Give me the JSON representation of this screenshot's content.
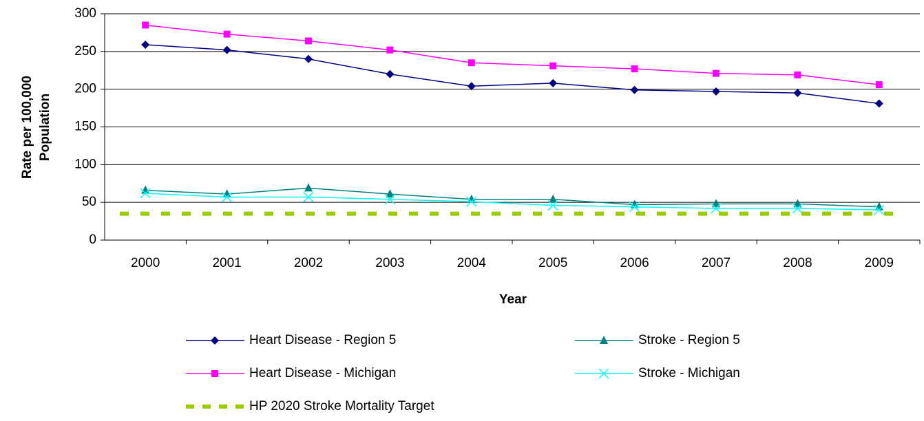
{
  "chart_data": {
    "type": "line",
    "x_label": "Year",
    "y_label": [
      "Rate per 100,000",
      "Population"
    ],
    "categories": [
      "2000",
      "2001",
      "2002",
      "2003",
      "2004",
      "2005",
      "2006",
      "2007",
      "2008",
      "2009"
    ],
    "series": [
      {
        "name": "Heart Disease - Region 5",
        "color": "#000080",
        "marker": "diamond",
        "values": [
          259,
          252,
          240,
          220,
          204,
          208,
          199,
          197,
          195,
          181
        ]
      },
      {
        "name": "Stroke - Region 5",
        "color": "#008080",
        "marker": "triangle",
        "values": [
          66,
          61,
          69,
          61,
          54,
          54,
          47,
          48,
          48,
          44
        ]
      },
      {
        "name": "Heart Disease - Michigan",
        "color": "#ff00ff",
        "marker": "square",
        "values": [
          285,
          273,
          264,
          252,
          235,
          231,
          227,
          221,
          219,
          206
        ]
      },
      {
        "name": "Stroke - Michigan",
        "color": "#00ffff",
        "marker": "x",
        "values": [
          62,
          57,
          57,
          54,
          51,
          46,
          44,
          42,
          42,
          40
        ]
      },
      {
        "name": "HP 2020 Stroke Mortality Target",
        "color": "#99cc00",
        "marker": "none",
        "dashed": true,
        "values": [
          35,
          35,
          35,
          35,
          35,
          35,
          35,
          35,
          35,
          35
        ]
      }
    ],
    "ylim": [
      0,
      300
    ],
    "yticks": [
      0,
      50,
      100,
      150,
      200,
      250,
      300
    ],
    "grid": true
  }
}
